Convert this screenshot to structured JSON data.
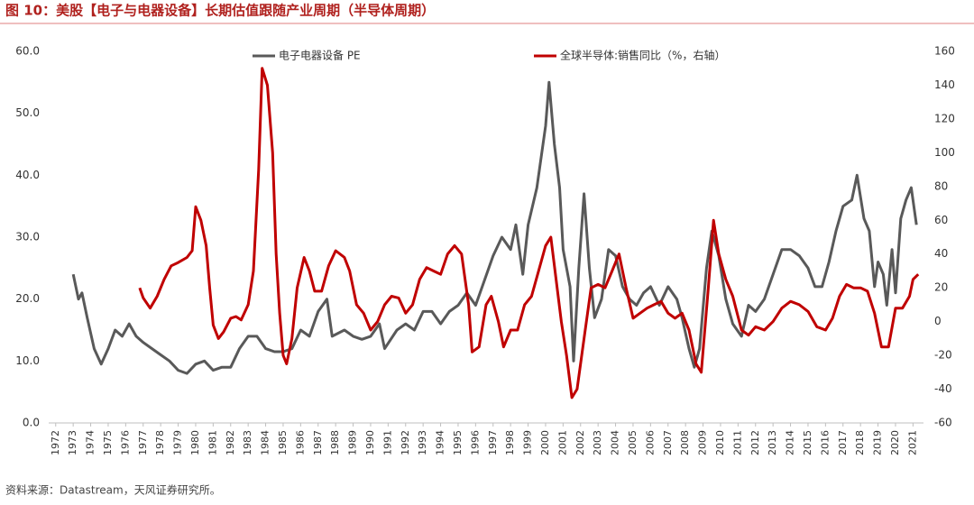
{
  "chart_data": {
    "type": "line",
    "title": "图 10：美股【电子与电器设备】长期估值跟随产业周期（半导体周期）",
    "source": "资料来源：Datastream，天风证券研究所。",
    "xlim": [
      1971.6,
      2021.6
    ],
    "xticks": [
      1972,
      1973,
      1974,
      1975,
      1976,
      1977,
      1978,
      1979,
      1980,
      1981,
      1982,
      1983,
      1984,
      1985,
      1986,
      1987,
      1988,
      1989,
      1990,
      1991,
      1992,
      1993,
      1994,
      1995,
      1996,
      1997,
      1998,
      1999,
      2000,
      2001,
      2002,
      2003,
      2004,
      2005,
      2006,
      2007,
      2008,
      2009,
      2010,
      2011,
      2012,
      2013,
      2014,
      2015,
      2016,
      2017,
      2018,
      2019,
      2020,
      2021
    ],
    "ylim": [
      0,
      60
    ],
    "yticks": [
      {
        "value": 0,
        "label": "0.0"
      },
      {
        "value": 10,
        "label": "10.0"
      },
      {
        "value": 20,
        "label": "20.0"
      },
      {
        "value": 30,
        "label": "30.0"
      },
      {
        "value": 40,
        "label": "40.0"
      },
      {
        "value": 50,
        "label": "50.0"
      },
      {
        "value": 60,
        "label": "60.0"
      }
    ],
    "y2lim": [
      -60,
      160
    ],
    "y2ticks": [
      -60,
      -40,
      -20,
      0,
      20,
      40,
      60,
      80,
      100,
      120,
      140,
      160
    ],
    "series": [
      {
        "name": "电子电器设备 PE",
        "color": "#595959",
        "x": [
          1973.0,
          1973.3,
          1973.5,
          1973.8,
          1974.2,
          1974.6,
          1975.0,
          1975.4,
          1975.8,
          1976.2,
          1976.6,
          1977.0,
          1977.5,
          1978.0,
          1978.5,
          1979.0,
          1979.5,
          1980.0,
          1980.5,
          1981.0,
          1981.5,
          1982.0,
          1982.5,
          1983.0,
          1983.5,
          1984.0,
          1984.5,
          1985.0,
          1985.5,
          1986.0,
          1986.5,
          1987.0,
          1987.5,
          1987.8,
          1988.5,
          1989.0,
          1989.5,
          1990.0,
          1990.5,
          1990.8,
          1991.5,
          1992.0,
          1992.5,
          1993.0,
          1993.5,
          1994.0,
          1994.5,
          1995.0,
          1995.5,
          1996.0,
          1996.5,
          1997.0,
          1997.5,
          1998.0,
          1998.3,
          1998.7,
          1999.0,
          1999.5,
          2000.0,
          2000.2,
          2000.5,
          2000.8,
          2001.0,
          2001.4,
          2001.6,
          2001.9,
          2002.2,
          2002.5,
          2002.8,
          2003.2,
          2003.6,
          2004.0,
          2004.4,
          2004.8,
          2005.2,
          2005.6,
          2006.0,
          2006.5,
          2007.0,
          2007.5,
          2007.8,
          2008.2,
          2008.5,
          2008.8,
          2009.2,
          2009.5,
          2009.9,
          2010.3,
          2010.7,
          2011.2,
          2011.6,
          2012.0,
          2012.5,
          2013.0,
          2013.5,
          2014.0,
          2014.5,
          2015.0,
          2015.4,
          2015.8,
          2016.2,
          2016.6,
          2017.0,
          2017.5,
          2017.8,
          2018.2,
          2018.5,
          2018.8,
          2019.0,
          2019.3,
          2019.5,
          2019.8,
          2020.0,
          2020.3,
          2020.6,
          2020.9,
          2021.2
        ],
        "values": [
          24,
          20,
          21,
          17,
          12,
          9.5,
          12,
          15,
          14,
          16,
          14,
          13,
          12,
          11,
          10,
          8.5,
          8,
          9.5,
          10,
          8.5,
          9,
          9,
          12,
          14,
          14,
          12,
          11.5,
          11.5,
          12,
          15,
          14,
          18,
          20,
          14,
          15,
          14,
          13.5,
          14,
          16,
          12,
          15,
          16,
          15,
          18,
          18,
          16,
          18,
          19,
          21,
          19,
          23,
          27,
          30,
          28,
          32,
          24,
          32,
          38,
          48,
          55,
          45,
          38,
          28,
          22,
          10,
          25,
          37,
          25,
          17,
          20,
          28,
          27,
          22,
          20,
          19,
          21,
          22,
          19,
          22,
          20,
          17,
          12,
          9,
          12,
          25,
          31,
          27,
          20,
          16,
          14,
          19,
          18,
          20,
          24,
          28,
          28,
          27,
          25,
          22,
          22,
          26,
          31,
          35,
          36,
          40,
          33,
          31,
          22,
          26,
          24,
          19,
          28,
          21,
          33,
          36,
          38,
          32
        ]
      },
      {
        "name": "全球半导体:销售同比（%，右轴）",
        "color": "#c00000",
        "axis": "y2",
        "x": [
          1976.8,
          1977.0,
          1977.4,
          1977.8,
          1978.2,
          1978.6,
          1979.0,
          1979.5,
          1979.8,
          1980.0,
          1980.3,
          1980.6,
          1980.8,
          1981.0,
          1981.3,
          1981.6,
          1982.0,
          1982.3,
          1982.6,
          1983.0,
          1983.3,
          1983.6,
          1983.8,
          1984.1,
          1984.4,
          1984.6,
          1984.8,
          1985.0,
          1985.2,
          1985.5,
          1985.8,
          1986.2,
          1986.5,
          1986.8,
          1987.2,
          1987.6,
          1988.0,
          1988.5,
          1988.8,
          1989.2,
          1989.6,
          1990.0,
          1990.4,
          1990.8,
          1991.2,
          1991.6,
          1992.0,
          1992.4,
          1992.8,
          1993.2,
          1993.6,
          1994.0,
          1994.4,
          1994.8,
          1995.2,
          1995.6,
          1995.8,
          1996.2,
          1996.6,
          1996.9,
          1997.3,
          1997.6,
          1998.0,
          1998.4,
          1998.8,
          1999.2,
          1999.6,
          2000.0,
          2000.3,
          2000.6,
          2000.9,
          2001.2,
          2001.5,
          2001.8,
          2002.2,
          2002.6,
          2003.0,
          2003.4,
          2003.8,
          2004.2,
          2004.6,
          2005.0,
          2005.4,
          2005.8,
          2006.2,
          2006.6,
          2007.0,
          2007.4,
          2007.8,
          2008.2,
          2008.6,
          2008.9,
          2009.3,
          2009.6,
          2009.9,
          2010.3,
          2010.7,
          2011.2,
          2011.6,
          2012.0,
          2012.5,
          2013.0,
          2013.5,
          2014.0,
          2014.5,
          2015.0,
          2015.5,
          2016.0,
          2016.4,
          2016.8,
          2017.2,
          2017.6,
          2018.0,
          2018.4,
          2018.8,
          2019.2,
          2019.6,
          2020.0,
          2020.4,
          2020.8,
          2021.0,
          2021.3
        ],
        "values": [
          20,
          14,
          8,
          15,
          25,
          33,
          35,
          38,
          42,
          68,
          60,
          45,
          20,
          -2,
          -10,
          -6,
          2,
          3,
          1,
          10,
          30,
          90,
          150,
          140,
          100,
          40,
          5,
          -20,
          -25,
          -10,
          20,
          38,
          30,
          18,
          18,
          33,
          42,
          38,
          30,
          10,
          5,
          -5,
          0,
          10,
          15,
          14,
          5,
          10,
          25,
          32,
          30,
          28,
          40,
          45,
          40,
          10,
          -18,
          -15,
          10,
          15,
          0,
          -15,
          -5,
          -5,
          10,
          15,
          30,
          45,
          50,
          25,
          0,
          -20,
          -45,
          -40,
          -10,
          20,
          22,
          20,
          30,
          40,
          20,
          2,
          5,
          8,
          10,
          12,
          5,
          2,
          5,
          -5,
          -25,
          -30,
          20,
          60,
          40,
          25,
          15,
          -5,
          -8,
          -3,
          -5,
          0,
          8,
          12,
          10,
          6,
          -3,
          -5,
          2,
          15,
          22,
          20,
          20,
          18,
          5,
          -15,
          -15,
          8,
          8,
          15,
          25,
          28
        ]
      }
    ]
  }
}
